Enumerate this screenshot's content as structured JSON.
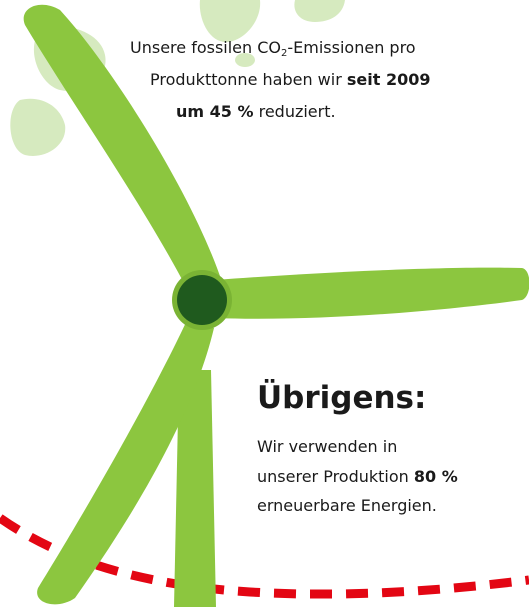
{
  "emissions_note": {
    "line1": {
      "text": "Unsere fossilen CO",
      "subscript": "2",
      "after": "-Emissionen pro"
    },
    "line2": {
      "text": "Produkttonne haben wir",
      "bold": "seit 2009"
    },
    "line3": {
      "bold": "um 45 %",
      "text": "reduziert."
    }
  },
  "sidebar": {
    "heading": "Übrigens:",
    "line1": "Wir verwenden in",
    "line2": {
      "text": "unserer Produktion",
      "bold": "80 %"
    },
    "line3": "erneuerbare Energien."
  }
}
